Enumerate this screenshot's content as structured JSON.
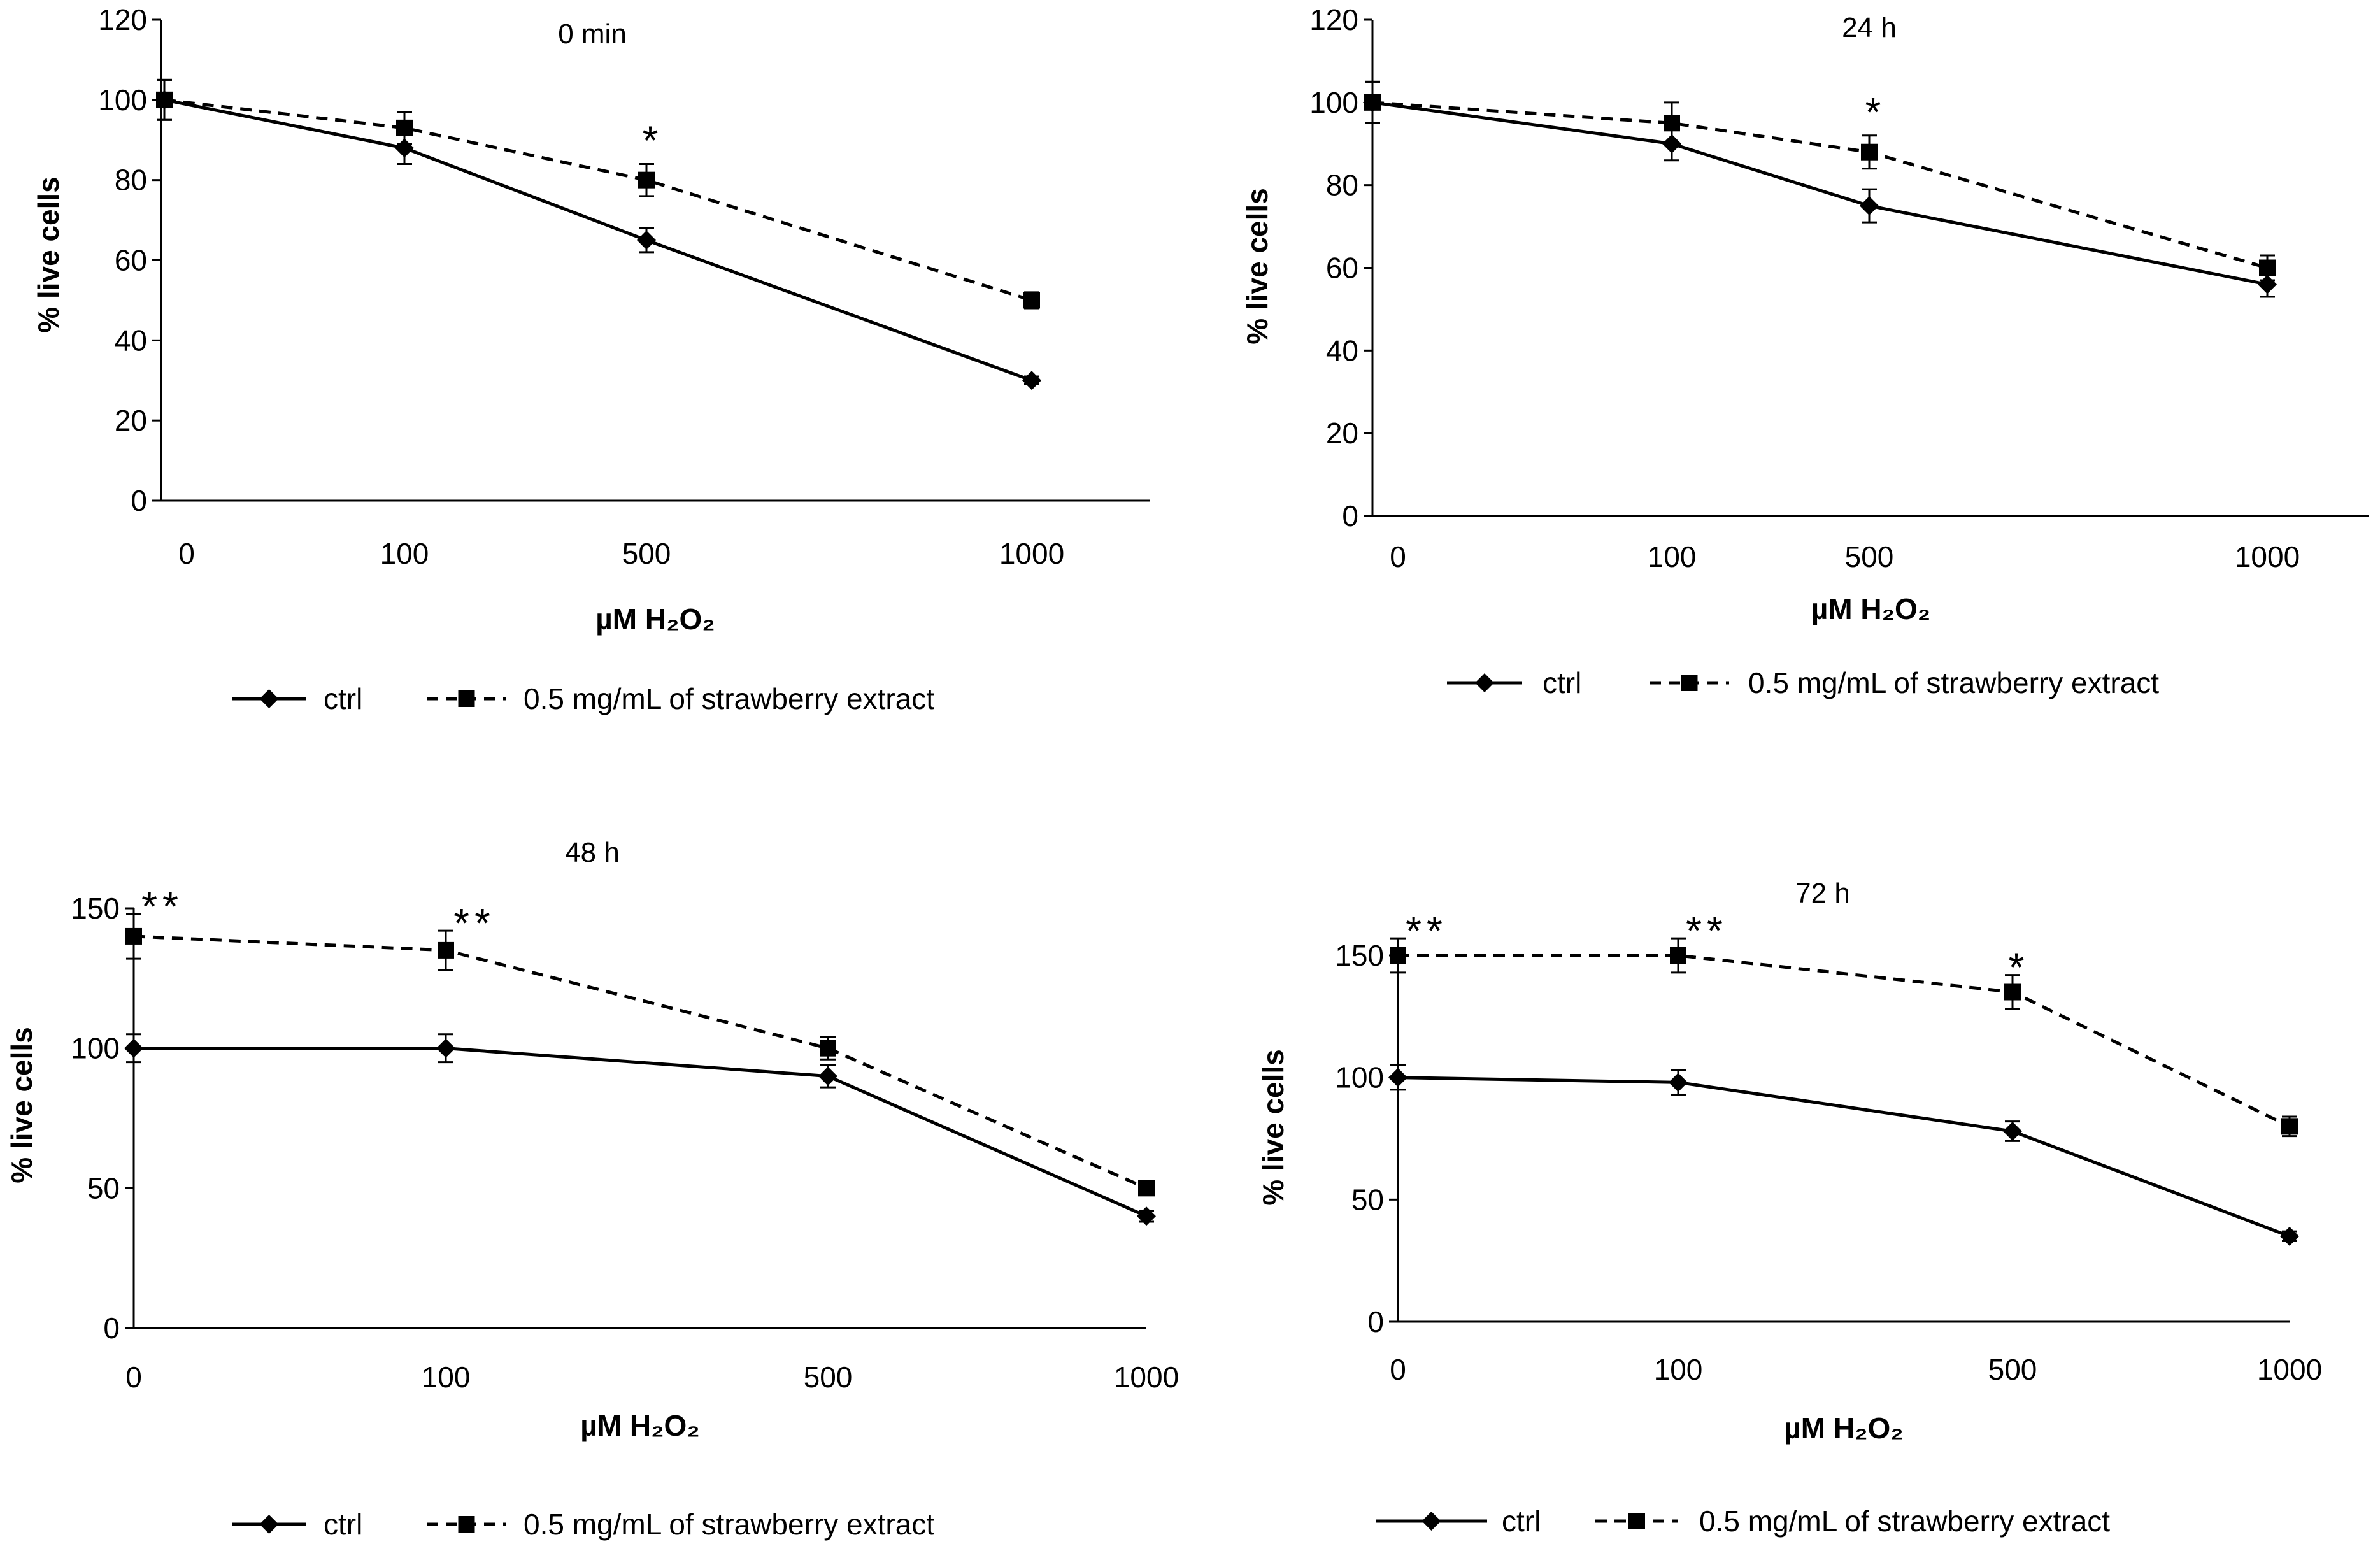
{
  "chart_data": [
    {
      "type": "line",
      "title": "0 min",
      "xlabel": "µM H₂O₂",
      "ylabel": "% live cells",
      "categories": [
        "0",
        "100",
        "500",
        "1000"
      ],
      "ylim": [
        0,
        120
      ],
      "yticks": [
        "0",
        "20",
        "40",
        "60",
        "80",
        "100",
        "120"
      ],
      "series": [
        {
          "name": "ctrl",
          "marker": "diamond",
          "dash": "solid",
          "values": [
            100,
            88,
            65,
            30
          ],
          "errors": [
            5,
            4,
            3,
            1
          ]
        },
        {
          "name": "0.5 mg/mL of strawberry extract",
          "marker": "square",
          "dash": "dashed",
          "values": [
            100,
            93,
            80,
            50
          ],
          "errors": [
            5,
            4,
            4,
            2
          ]
        }
      ],
      "annotations": [
        {
          "category": "500",
          "text": "*"
        }
      ]
    },
    {
      "type": "line",
      "title": "24 h",
      "xlabel": "µM H₂O₂",
      "ylabel": "% live cells",
      "categories": [
        "0",
        "100",
        "500",
        "1000"
      ],
      "ylim": [
        0,
        120
      ],
      "yticks": [
        "0",
        "20",
        "40",
        "60",
        "80",
        "100",
        "120"
      ],
      "series": [
        {
          "name": "ctrl",
          "marker": "diamond",
          "dash": "solid",
          "values": [
            100,
            90,
            75,
            56
          ],
          "errors": [
            5,
            4,
            4,
            3
          ]
        },
        {
          "name": "0.5 mg/mL of strawberry extract",
          "marker": "square",
          "dash": "dashed",
          "values": [
            100,
            95,
            88,
            60
          ],
          "errors": [
            5,
            5,
            4,
            3
          ]
        }
      ],
      "annotations": [
        {
          "category": "500",
          "text": "*"
        }
      ]
    },
    {
      "type": "line",
      "title": "48 h",
      "xlabel": "µM H₂O₂",
      "ylabel": "% live cells",
      "categories": [
        "0",
        "100",
        "500",
        "1000"
      ],
      "ylim": [
        0,
        150
      ],
      "yticks": [
        "0",
        "50",
        "100",
        "150"
      ],
      "series": [
        {
          "name": "ctrl",
          "marker": "diamond",
          "dash": "solid",
          "values": [
            100,
            100,
            90,
            40
          ],
          "errors": [
            5,
            5,
            4,
            2
          ]
        },
        {
          "name": "0.5 mg/mL of strawberry extract",
          "marker": "square",
          "dash": "dashed",
          "values": [
            140,
            135,
            100,
            50
          ],
          "errors": [
            8,
            7,
            4,
            2
          ]
        }
      ],
      "annotations": [
        {
          "category": "0",
          "text": "**"
        },
        {
          "category": "100",
          "text": "**"
        }
      ]
    },
    {
      "type": "line",
      "title": "72 h",
      "xlabel": "µM H₂O₂",
      "ylabel": "% live cells",
      "categories": [
        "0",
        "100",
        "500",
        "1000"
      ],
      "ylim": [
        0,
        150
      ],
      "yticks": [
        "0",
        "50",
        "100",
        "150"
      ],
      "series": [
        {
          "name": "ctrl",
          "marker": "diamond",
          "dash": "solid",
          "values": [
            100,
            98,
            78,
            35
          ],
          "errors": [
            5,
            5,
            4,
            2
          ]
        },
        {
          "name": "0.5 mg/mL of strawberry extract",
          "marker": "square",
          "dash": "dashed",
          "values": [
            150,
            150,
            135,
            80
          ],
          "errors": [
            7,
            7,
            7,
            4
          ]
        }
      ],
      "annotations": [
        {
          "category": "0",
          "text": "**"
        },
        {
          "category": "100",
          "text": "**"
        },
        {
          "category": "500",
          "text": "*"
        }
      ]
    }
  ]
}
